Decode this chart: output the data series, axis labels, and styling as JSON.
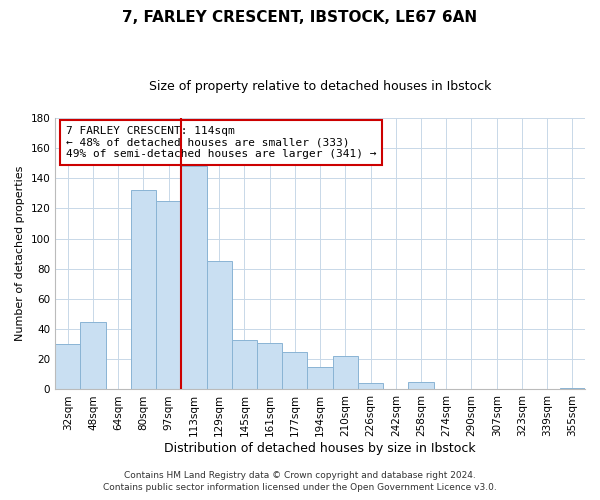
{
  "title": "7, FARLEY CRESCENT, IBSTOCK, LE67 6AN",
  "subtitle": "Size of property relative to detached houses in Ibstock",
  "xlabel": "Distribution of detached houses by size in Ibstock",
  "ylabel": "Number of detached properties",
  "bar_labels": [
    "32sqm",
    "48sqm",
    "64sqm",
    "80sqm",
    "97sqm",
    "113sqm",
    "129sqm",
    "145sqm",
    "161sqm",
    "177sqm",
    "194sqm",
    "210sqm",
    "226sqm",
    "242sqm",
    "258sqm",
    "274sqm",
    "290sqm",
    "307sqm",
    "323sqm",
    "339sqm",
    "355sqm"
  ],
  "bar_values": [
    30,
    45,
    0,
    132,
    125,
    148,
    85,
    33,
    31,
    25,
    15,
    22,
    4,
    0,
    5,
    0,
    0,
    0,
    0,
    0,
    1
  ],
  "bar_color": "#c9dff2",
  "bar_edge_color": "#8ab4d4",
  "vline_color": "#cc0000",
  "vline_bar_index": 5,
  "ylim": [
    0,
    180
  ],
  "yticks": [
    0,
    20,
    40,
    60,
    80,
    100,
    120,
    140,
    160,
    180
  ],
  "annotation_title": "7 FARLEY CRESCENT: 114sqm",
  "annotation_line1": "← 48% of detached houses are smaller (333)",
  "annotation_line2": "49% of semi-detached houses are larger (341) →",
  "annotation_box_color": "#ffffff",
  "annotation_box_edge": "#cc0000",
  "footer1": "Contains HM Land Registry data © Crown copyright and database right 2024.",
  "footer2": "Contains public sector information licensed under the Open Government Licence v3.0.",
  "background_color": "#ffffff",
  "grid_color": "#c8d8e8",
  "title_fontsize": 11,
  "subtitle_fontsize": 9,
  "ylabel_fontsize": 8,
  "xlabel_fontsize": 9,
  "tick_fontsize": 7.5,
  "footer_fontsize": 6.5,
  "annotation_fontsize": 8
}
